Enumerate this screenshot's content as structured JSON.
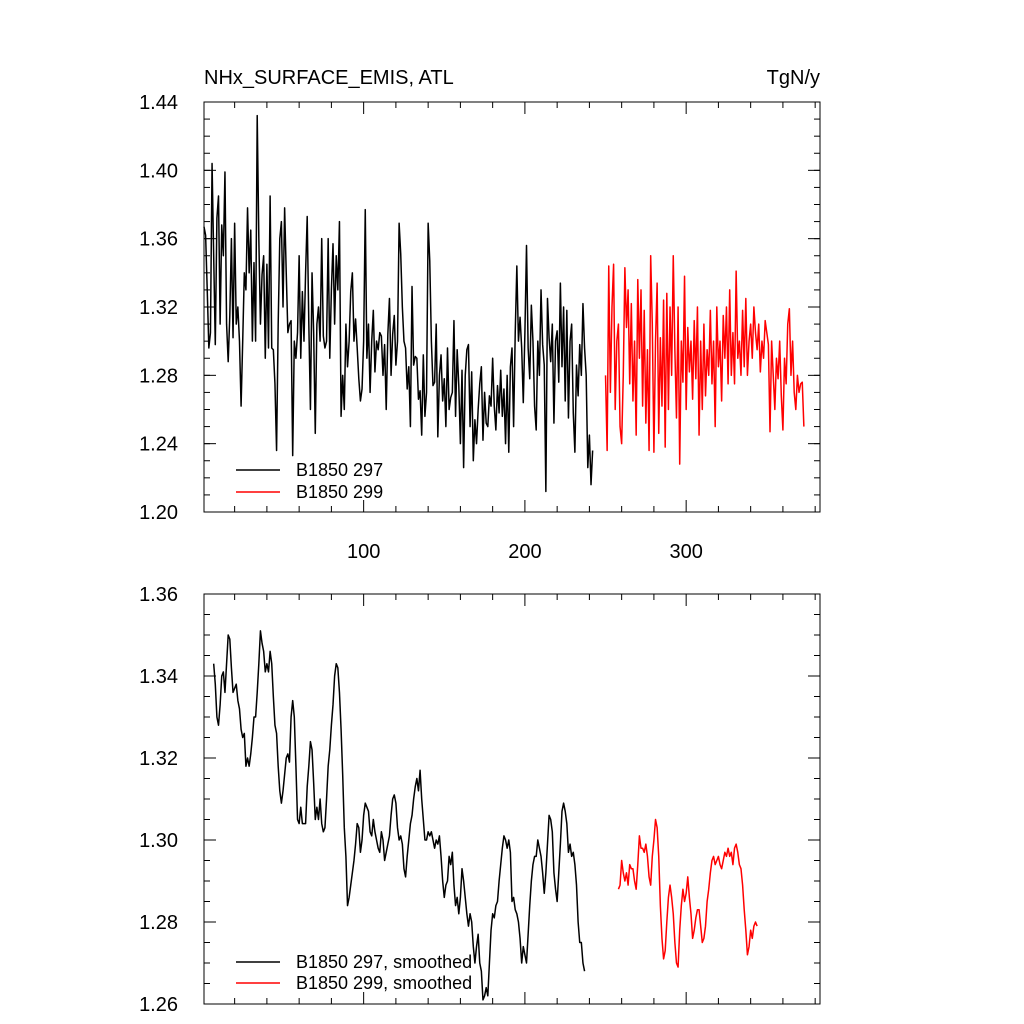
{
  "chart_data": [
    {
      "type": "line",
      "title": "NHx_SURFACE_EMIS, ATL",
      "units_label": "TgN/y",
      "xlim": [
        1,
        383
      ],
      "ylim": [
        1.2,
        1.44
      ],
      "x_ticks": [
        100,
        200,
        300
      ],
      "y_ticks": [
        "1.20",
        "1.24",
        "1.28",
        "1.32",
        "1.36",
        "1.40",
        "1.44"
      ],
      "legend_position": "bottom-left",
      "series": [
        {
          "name": "B1850 297",
          "color": "#000000",
          "x_start": 1,
          "values": [
            1.367,
            1.362,
            1.33,
            1.296,
            1.305,
            1.404,
            1.35,
            1.298,
            1.372,
            1.385,
            1.31,
            1.368,
            1.35,
            1.399,
            1.31,
            1.288,
            1.315,
            1.36,
            1.302,
            1.369,
            1.31,
            1.32,
            1.3,
            1.262,
            1.3,
            1.34,
            1.33,
            1.378,
            1.34,
            1.365,
            1.3,
            1.346,
            1.3,
            1.432,
            1.36,
            1.31,
            1.339,
            1.35,
            1.29,
            1.345,
            1.296,
            1.385,
            1.296,
            1.295,
            1.275,
            1.236,
            1.31,
            1.36,
            1.37,
            1.32,
            1.378,
            1.34,
            1.305,
            1.31,
            1.312,
            1.233,
            1.3,
            1.29,
            1.305,
            1.35,
            1.29,
            1.329,
            1.3,
            1.34,
            1.373,
            1.31,
            1.26,
            1.34,
            1.305,
            1.246,
            1.31,
            1.32,
            1.3,
            1.36,
            1.303,
            1.296,
            1.3,
            1.36,
            1.29,
            1.33,
            1.357,
            1.31,
            1.35,
            1.33,
            1.37,
            1.256,
            1.28,
            1.26,
            1.31,
            1.285,
            1.3,
            1.329,
            1.34,
            1.3,
            1.313,
            1.296,
            1.278,
            1.265,
            1.272,
            1.3,
            1.377,
            1.29,
            1.31,
            1.27,
            1.3,
            1.318,
            1.282,
            1.3,
            1.295,
            1.305,
            1.303,
            1.28,
            1.298,
            1.26,
            1.304,
            1.325,
            1.28,
            1.304,
            1.315,
            1.286,
            1.3,
            1.369,
            1.351,
            1.32,
            1.3,
            1.296,
            1.272,
            1.285,
            1.25,
            1.332,
            1.286,
            1.291,
            1.29,
            1.266,
            1.271,
            1.245,
            1.292,
            1.256,
            1.27,
            1.369,
            1.347,
            1.3,
            1.274,
            1.276,
            1.31,
            1.244,
            1.28,
            1.292,
            1.265,
            1.278,
            1.25,
            1.296,
            1.26,
            1.267,
            1.27,
            1.312,
            1.256,
            1.295,
            1.274,
            1.24,
            1.283,
            1.226,
            1.28,
            1.295,
            1.298,
            1.25,
            1.282,
            1.23,
            1.254,
            1.24,
            1.26,
            1.275,
            1.285,
            1.242,
            1.27,
            1.252,
            1.25,
            1.268,
            1.262,
            1.29,
            1.262,
            1.248,
            1.274,
            1.258,
            1.283,
            1.256,
            1.272,
            1.24,
            1.28,
            1.235,
            1.285,
            1.296,
            1.25,
            1.305,
            1.344,
            1.3,
            1.314,
            1.296,
            1.264,
            1.305,
            1.356,
            1.296,
            1.278,
            1.321,
            1.3,
            1.262,
            1.248,
            1.3,
            1.28,
            1.33,
            1.298,
            1.286,
            1.212,
            1.325,
            1.302,
            1.288,
            1.31,
            1.252,
            1.3,
            1.306,
            1.276,
            1.334,
            1.285,
            1.32,
            1.265,
            1.318,
            1.255,
            1.3,
            1.31,
            1.258,
            1.235,
            1.286,
            1.268,
            1.298,
            1.28,
            1.322,
            1.296,
            1.28,
            1.226,
            1.245,
            1.216,
            1.236
          ]
        },
        {
          "name": "B1850 299",
          "color": "#ff0000",
          "x_start": 250,
          "values": [
            1.28,
            1.236,
            1.344,
            1.27,
            1.32,
            1.345,
            1.26,
            1.3,
            1.31,
            1.25,
            1.24,
            1.28,
            1.343,
            1.308,
            1.33,
            1.275,
            1.322,
            1.265,
            1.3,
            1.245,
            1.336,
            1.29,
            1.33,
            1.262,
            1.318,
            1.252,
            1.295,
            1.236,
            1.35,
            1.31,
            1.235,
            1.3,
            1.334,
            1.246,
            1.302,
            1.262,
            1.324,
            1.238,
            1.328,
            1.26,
            1.32,
            1.28,
            1.35,
            1.295,
            1.255,
            1.32,
            1.228,
            1.3,
            1.276,
            1.338,
            1.26,
            1.308,
            1.282,
            1.3,
            1.266,
            1.312,
            1.278,
            1.32,
            1.245,
            1.3,
            1.26,
            1.31,
            1.268,
            1.295,
            1.28,
            1.318,
            1.275,
            1.3,
            1.25,
            1.32,
            1.285,
            1.3,
            1.265,
            1.315,
            1.29,
            1.32,
            1.275,
            1.33,
            1.28,
            1.305,
            1.275,
            1.341,
            1.29,
            1.3,
            1.28,
            1.318,
            1.285,
            1.325,
            1.28,
            1.3,
            1.31,
            1.29,
            1.32,
            1.305,
            1.295,
            1.31,
            1.282,
            1.3,
            1.29,
            1.312,
            1.305,
            1.298,
            1.247,
            1.3,
            1.28,
            1.26,
            1.29,
            1.278,
            1.3,
            1.268,
            1.248,
            1.29,
            1.275,
            1.31,
            1.319,
            1.28,
            1.3,
            1.27,
            1.26,
            1.28,
            1.27,
            1.275,
            1.276,
            1.25
          ]
        }
      ]
    },
    {
      "type": "line",
      "xlim": [
        1,
        383
      ],
      "ylim": [
        1.26,
        1.36
      ],
      "y_ticks": [
        "1.26",
        "1.28",
        "1.30",
        "1.32",
        "1.34",
        "1.36"
      ],
      "legend_position": "bottom-left",
      "series": [
        {
          "name": "B1850 297, smoothed",
          "color": "#000000",
          "x_start": 7,
          "values": [
            1.343,
            1.338,
            1.33,
            1.328,
            1.333,
            1.34,
            1.341,
            1.336,
            1.343,
            1.35,
            1.349,
            1.342,
            1.336,
            1.337,
            1.338,
            1.334,
            1.332,
            1.327,
            1.325,
            1.326,
            1.318,
            1.32,
            1.318,
            1.321,
            1.325,
            1.33,
            1.33,
            1.336,
            1.343,
            1.351,
            1.348,
            1.346,
            1.341,
            1.343,
            1.341,
            1.346,
            1.343,
            1.335,
            1.328,
            1.326,
            1.318,
            1.312,
            1.309,
            1.312,
            1.316,
            1.32,
            1.321,
            1.319,
            1.33,
            1.334,
            1.33,
            1.318,
            1.305,
            1.304,
            1.308,
            1.304,
            1.304,
            1.304,
            1.313,
            1.318,
            1.324,
            1.322,
            1.314,
            1.305,
            1.308,
            1.305,
            1.31,
            1.304,
            1.302,
            1.303,
            1.31,
            1.318,
            1.322,
            1.328,
            1.333,
            1.34,
            1.343,
            1.342,
            1.336,
            1.327,
            1.316,
            1.303,
            1.296,
            1.284,
            1.286,
            1.289,
            1.292,
            1.295,
            1.299,
            1.304,
            1.303,
            1.297,
            1.3,
            1.306,
            1.309,
            1.308,
            1.307,
            1.302,
            1.301,
            1.305,
            1.302,
            1.3,
            1.298,
            1.297,
            1.302,
            1.3,
            1.295,
            1.297,
            1.299,
            1.301,
            1.306,
            1.31,
            1.311,
            1.309,
            1.303,
            1.3,
            1.301,
            1.299,
            1.293,
            1.291,
            1.296,
            1.3,
            1.304,
            1.306,
            1.31,
            1.313,
            1.315,
            1.312,
            1.317,
            1.31,
            1.305,
            1.3,
            1.3,
            1.302,
            1.301,
            1.302,
            1.3,
            1.298,
            1.3,
            1.299,
            1.301,
            1.296,
            1.29,
            1.286,
            1.289,
            1.29,
            1.296,
            1.294,
            1.297,
            1.289,
            1.284,
            1.286,
            1.282,
            1.286,
            1.293,
            1.29,
            1.286,
            1.282,
            1.279,
            1.282,
            1.28,
            1.274,
            1.27,
            1.274,
            1.277,
            1.27,
            1.268,
            1.261,
            1.262,
            1.264,
            1.262,
            1.27,
            1.278,
            1.282,
            1.281,
            1.284,
            1.285,
            1.29,
            1.294,
            1.298,
            1.301,
            1.3,
            1.298,
            1.3,
            1.297,
            1.285,
            1.286,
            1.283,
            1.282,
            1.28,
            1.276,
            1.27,
            1.274,
            1.272,
            1.27,
            1.277,
            1.284,
            1.29,
            1.294,
            1.296,
            1.296,
            1.3,
            1.298,
            1.296,
            1.292,
            1.287,
            1.292,
            1.299,
            1.306,
            1.305,
            1.302,
            1.292,
            1.288,
            1.285,
            1.292,
            1.299,
            1.307,
            1.309,
            1.307,
            1.304,
            1.297,
            1.299,
            1.296,
            1.297,
            1.294,
            1.289,
            1.28,
            1.275,
            1.275,
            1.27,
            1.268
          ]
        },
        {
          "name": "B1850 299, smoothed",
          "color": "#ff0000",
          "x_start": 258,
          "values": [
            1.288,
            1.289,
            1.295,
            1.292,
            1.29,
            1.292,
            1.289,
            1.294,
            1.293,
            1.293,
            1.29,
            1.288,
            1.294,
            1.301,
            1.298,
            1.298,
            1.297,
            1.299,
            1.296,
            1.291,
            1.289,
            1.296,
            1.3,
            1.305,
            1.303,
            1.296,
            1.284,
            1.276,
            1.271,
            1.273,
            1.28,
            1.286,
            1.289,
            1.286,
            1.282,
            1.275,
            1.27,
            1.269,
            1.278,
            1.284,
            1.288,
            1.285,
            1.287,
            1.291,
            1.286,
            1.282,
            1.276,
            1.278,
            1.281,
            1.283,
            1.283,
            1.279,
            1.275,
            1.276,
            1.279,
            1.285,
            1.288,
            1.292,
            1.295,
            1.296,
            1.294,
            1.295,
            1.296,
            1.294,
            1.293,
            1.295,
            1.297,
            1.296,
            1.298,
            1.296,
            1.297,
            1.294,
            1.298,
            1.299,
            1.297,
            1.294,
            1.293,
            1.289,
            1.283,
            1.278,
            1.272,
            1.274,
            1.278,
            1.276,
            1.279,
            1.28,
            1.279
          ]
        }
      ]
    }
  ]
}
